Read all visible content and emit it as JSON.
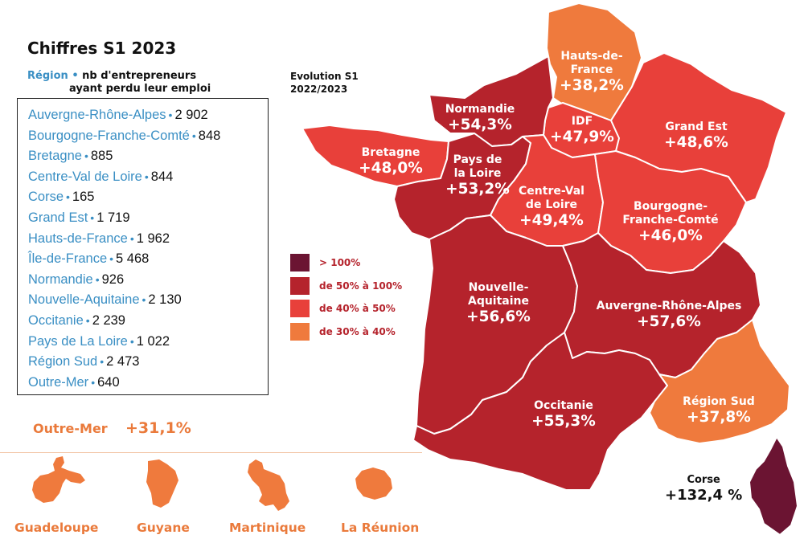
{
  "title": "Chiffres S1 2023",
  "legend_header": {
    "region": "Région",
    "dot": "•",
    "metric_line1": "nb d'entrepreneurs",
    "metric_line2": "ayant perdu leur emploi"
  },
  "evolution_header": {
    "line1": "Evolution S1",
    "line2": "2022/2023"
  },
  "region_list": [
    {
      "name": "Auvergne-Rhône-Alpes",
      "value": "2 902"
    },
    {
      "name": "Bourgogne-Franche-Comté",
      "value": "848"
    },
    {
      "name": "Bretagne",
      "value": "885"
    },
    {
      "name": "Centre-Val de Loire",
      "value": "844"
    },
    {
      "name": "Corse",
      "value": "165"
    },
    {
      "name": "Grand Est",
      "value": "1 719"
    },
    {
      "name": "Hauts-de-France",
      "value": "1 962"
    },
    {
      "name": "Île-de-France",
      "value": "5 468"
    },
    {
      "name": "Normandie",
      "value": "926"
    },
    {
      "name": "Nouvelle-Aquitaine",
      "value": "2 130"
    },
    {
      "name": "Occitanie",
      "value": "2 239"
    },
    {
      "name": "Pays de La Loire",
      "value": "1 022"
    },
    {
      "name": "Région Sud",
      "value": "2 473"
    },
    {
      "name": "Outre-Mer",
      "value": "640"
    }
  ],
  "outre_mer": {
    "label": "Outre-Mer",
    "value": "+31,1%",
    "territories": [
      "Guadeloupe",
      "Guyane",
      "Martinique",
      "La Réunion"
    ]
  },
  "color_scale": [
    {
      "label": "> 100%",
      "color": "#6b1432"
    },
    {
      "label": "de 50% à 100%",
      "color": "#b5232c"
    },
    {
      "label": "de 40% à 50%",
      "color": "#e8403a"
    },
    {
      "label": "de 30% à 40%",
      "color": "#ef7a3d"
    }
  ],
  "map_regions": [
    {
      "id": "hdf",
      "name": "Hauts-de-\nFrance",
      "pct": "+38,2%",
      "color": "#ef7a3d"
    },
    {
      "id": "nor",
      "name": "Normandie",
      "pct": "+54,3%",
      "color": "#b5232c"
    },
    {
      "id": "idf",
      "name": "IDF",
      "pct": "+47,9%",
      "color": "#e8403a"
    },
    {
      "id": "ge",
      "name": "Grand Est",
      "pct": "+48,6%",
      "color": "#e8403a"
    },
    {
      "id": "bre",
      "name": "Bretagne",
      "pct": "+48,0%",
      "color": "#e8403a"
    },
    {
      "id": "pdl",
      "name": "Pays de\nla Loire",
      "pct": "+53,2%",
      "color": "#b5232c"
    },
    {
      "id": "cvl",
      "name": "Centre-Val\nde Loire",
      "pct": "+49,4%",
      "color": "#e8403a"
    },
    {
      "id": "bfc",
      "name": "Bourgogne-\nFranche-Comté",
      "pct": "+46,0%",
      "color": "#e8403a"
    },
    {
      "id": "na",
      "name": "Nouvelle-\nAquitaine",
      "pct": "+56,6%",
      "color": "#b5232c"
    },
    {
      "id": "ara",
      "name": "Auvergne-Rhône-Alpes",
      "pct": "+57,6%",
      "color": "#b5232c"
    },
    {
      "id": "occ",
      "name": "Occitanie",
      "pct": "+55,3%",
      "color": "#b5232c"
    },
    {
      "id": "sud",
      "name": "Région Sud",
      "pct": "+37,8%",
      "color": "#ef7a3d"
    },
    {
      "id": "cor",
      "name": "Corse",
      "pct": "+132,4 %",
      "color": "#6b1432"
    }
  ]
}
